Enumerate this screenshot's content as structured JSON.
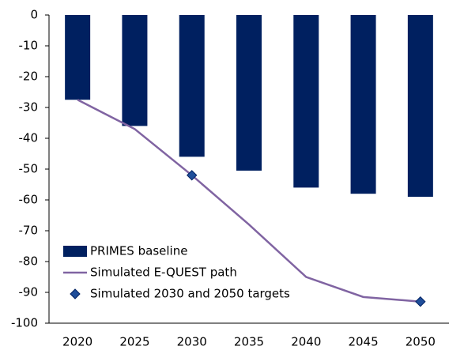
{
  "chart_data": {
    "type": "bar",
    "categories": [
      "2020",
      "2025",
      "2030",
      "2035",
      "2040",
      "2045",
      "2050"
    ],
    "series": [
      {
        "name": "PRIMES baseline",
        "type": "bar",
        "color": "#002060",
        "values": [
          -27.5,
          -36,
          -46,
          -50.5,
          -56,
          -58,
          -59
        ]
      },
      {
        "name": "Simulated E-QUEST path",
        "type": "line",
        "color": "#8064a2",
        "values": [
          -27.5,
          -37,
          -52,
          -68,
          -85,
          -91.5,
          -93
        ]
      },
      {
        "name": "Simulated 2030 and 2050 targets",
        "type": "scatter",
        "color": "#1f4e9a",
        "values": [
          null,
          null,
          -52,
          null,
          null,
          null,
          -93
        ]
      }
    ],
    "ylim": [
      -100,
      0
    ],
    "yticks": [
      0,
      -10,
      -20,
      -30,
      -40,
      -50,
      -60,
      -70,
      -80,
      -90,
      -100
    ],
    "grid": false,
    "legend": "bottom-left"
  }
}
